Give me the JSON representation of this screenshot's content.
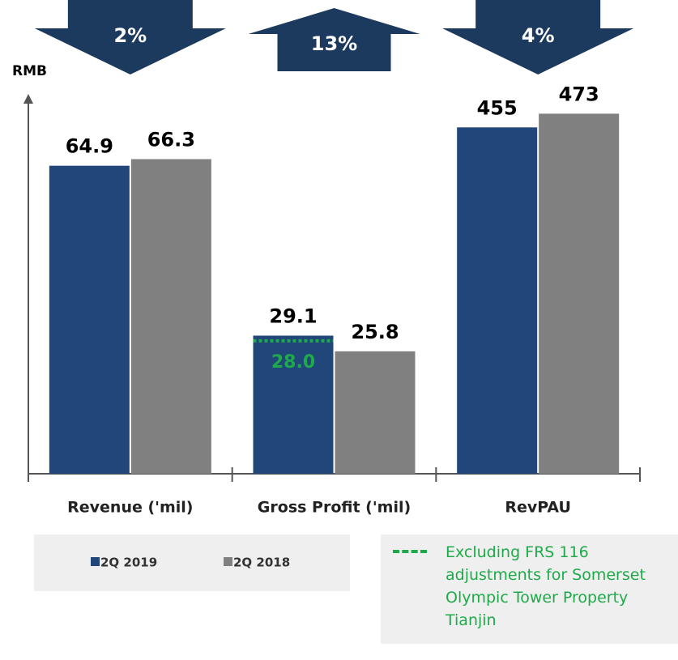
{
  "chart_data": {
    "type": "bar",
    "y_label": "RMB",
    "categories": [
      "Revenue ('mil)",
      "Gross Profit ('mil)",
      "RevPAU"
    ],
    "series": [
      {
        "name": "2Q 2019",
        "color": "#21477a",
        "values": [
          64.9,
          29.1,
          455
        ]
      },
      {
        "name": "2Q 2018",
        "color": "#808080",
        "values": [
          66.3,
          25.8,
          473
        ]
      }
    ],
    "changes": [
      {
        "value": 2,
        "label": "2%",
        "direction": "down"
      },
      {
        "value": 13,
        "label": "13%",
        "direction": "up"
      },
      {
        "value": 4,
        "label": "4%",
        "direction": "down"
      }
    ],
    "arrow_color": "#1c3a5e",
    "reference": {
      "value": 28,
      "label": "28.0",
      "category": "Gross Profit ('mil)",
      "series": "2Q 2019",
      "color": "#1faa4a",
      "note": "Excluding FRS 116 adjustments for Somerset Olympic Tower Property Tianjin"
    }
  }
}
